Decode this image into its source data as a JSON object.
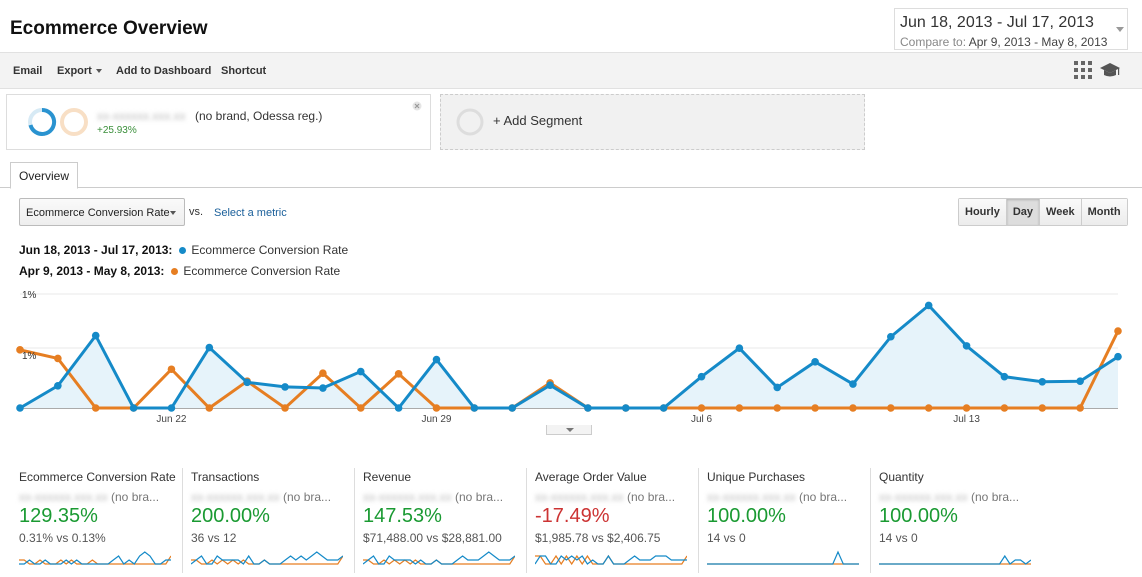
{
  "page": {
    "title": "Ecommerce Overview"
  },
  "date_range": {
    "main": "Jun 18, 2013 - Jul 17, 2013",
    "compare_label": "Compare to:",
    "compare_value": "Apr 9, 2013 - May 8, 2013"
  },
  "toolbar": {
    "email": "Email",
    "export": "Export",
    "add_to_dashboard": "Add to Dashboard",
    "shortcut": "Shortcut"
  },
  "segments": {
    "active": {
      "name_blurred": "xx-xxxxxx.xxx.xx",
      "label": "(no brand, Odessa reg.)",
      "change": "+25.93%"
    },
    "add": "+ Add Segment"
  },
  "tabs": {
    "overview": "Overview"
  },
  "controls": {
    "metric": "Ecommerce Conversion Rate",
    "vs": "vs.",
    "select_metric": "Select a metric",
    "granularity": [
      "Hourly",
      "Day",
      "Week",
      "Month"
    ],
    "active_granularity": "Day"
  },
  "legend": [
    {
      "range": "Jun 18, 2013 - Jul 17, 2013:",
      "metric": "Ecommerce Conversion Rate",
      "color": "#158ac8"
    },
    {
      "range": "Apr 9, 2013 - May 8, 2013:",
      "metric": "Ecommerce Conversion Rate",
      "color": "#e67e22"
    }
  ],
  "chart_data": {
    "type": "line",
    "ytick_labels": [
      "1%",
      "1%"
    ],
    "xtick_labels": [
      "Jun 22",
      "Jun 29",
      "Jul 6",
      "Jul 13"
    ],
    "series": [
      {
        "name": "Jun 18, 2013 - Jul 17, 2013",
        "color": "#158ac8",
        "values": [
          0,
          0.39,
          1.27,
          0,
          0,
          1.06,
          0.45,
          0.37,
          0.35,
          0.64,
          0,
          0.85,
          0,
          0,
          0.4,
          0,
          0,
          0,
          0.55,
          1.05,
          0.36,
          0.81,
          0.42,
          1.25,
          1.8,
          1.09,
          0.55,
          0.46,
          0.47,
          0.9
        ],
        "area": true
      },
      {
        "name": "Apr 9, 2013 - May 8, 2013",
        "color": "#e67e22",
        "values": [
          1.02,
          0.87,
          0,
          0,
          0.68,
          0,
          0.47,
          0,
          0.61,
          0,
          0.6,
          0,
          0,
          0,
          0.44,
          0,
          0,
          0,
          0,
          0,
          0,
          0,
          0,
          0,
          0,
          0,
          0,
          0,
          0,
          1.35
        ],
        "area": false
      }
    ]
  },
  "metric_cards": [
    {
      "name": "Ecommerce Conversion Rate",
      "segment_blur": "xx-xxxxxx.xxx.xx",
      "segment_suffix": "(no bra...",
      "change": "129.35%",
      "change_color": "#1a9a32",
      "comparison": "0.31% vs 0.13%",
      "spark_a": [
        0,
        0,
        1,
        0,
        0,
        1,
        0,
        0,
        0,
        1,
        0,
        1,
        0,
        0,
        0,
        0,
        0,
        0,
        1,
        2,
        0,
        1,
        0,
        2,
        3,
        2,
        0,
        0,
        1,
        1
      ],
      "spark_b": [
        1,
        1,
        0,
        0,
        1,
        0,
        0,
        0,
        1,
        0,
        1,
        0,
        0,
        0,
        1,
        0,
        0,
        0,
        0,
        0,
        0,
        0,
        0,
        0,
        0,
        0,
        0,
        0,
        0,
        2
      ]
    },
    {
      "name": "Transactions",
      "segment_blur": "xx-xxxxxx.xxx.xx",
      "segment_suffix": "(no bra...",
      "change": "200.00%",
      "change_color": "#1a9a32",
      "comparison": "36 vs 12",
      "spark_a": [
        0,
        1,
        2,
        0,
        0,
        2,
        1,
        1,
        1,
        1,
        0,
        2,
        0,
        0,
        1,
        0,
        0,
        0,
        1,
        2,
        1,
        2,
        1,
        2,
        3,
        2,
        1,
        1,
        1,
        2
      ],
      "spark_b": [
        1,
        1,
        0,
        0,
        1,
        0,
        1,
        0,
        1,
        0,
        1,
        0,
        0,
        0,
        1,
        0,
        0,
        0,
        0,
        0,
        0,
        0,
        0,
        0,
        0,
        0,
        0,
        0,
        0,
        2
      ]
    },
    {
      "name": "Revenue",
      "segment_blur": "xx-xxxxxx.xxx.xx",
      "segment_suffix": "(no bra...",
      "change": "147.53%",
      "change_color": "#1a9a32",
      "comparison": "$71,488.00 vs $28,881.00",
      "spark_a": [
        0,
        1,
        2,
        0,
        0,
        2,
        1,
        1,
        1,
        1,
        0,
        1,
        0,
        0,
        1,
        0,
        0,
        0,
        1,
        2,
        1,
        1,
        1,
        2,
        3,
        2,
        1,
        1,
        1,
        2
      ],
      "spark_b": [
        1,
        1,
        0,
        0,
        1,
        0,
        1,
        0,
        1,
        0,
        1,
        0,
        0,
        0,
        1,
        0,
        0,
        0,
        0,
        0,
        0,
        0,
        0,
        0,
        0,
        0,
        0,
        0,
        0,
        2
      ]
    },
    {
      "name": "Average Order Value",
      "segment_blur": "xx-xxxxxx.xxx.xx",
      "segment_suffix": "(no bra...",
      "change": "-17.49%",
      "change_color": "#cc3333",
      "comparison": "$1,985.78 vs $2,406.75",
      "spark_a": [
        0,
        2,
        2,
        0,
        0,
        2,
        1,
        2,
        1,
        2,
        0,
        1,
        0,
        0,
        2,
        0,
        0,
        0,
        1,
        2,
        1,
        1,
        1,
        2,
        2,
        2,
        1,
        1,
        1,
        1
      ],
      "spark_b": [
        2,
        2,
        0,
        0,
        2,
        0,
        2,
        0,
        2,
        0,
        2,
        0,
        0,
        0,
        2,
        0,
        0,
        0,
        0,
        0,
        0,
        0,
        0,
        0,
        0,
        0,
        0,
        0,
        0,
        2
      ]
    },
    {
      "name": "Unique Purchases",
      "segment_blur": "xx-xxxxxx.xxx.xx",
      "segment_suffix": "(no bra...",
      "change": "100.00%",
      "change_color": "#1a9a32",
      "comparison": "14 vs 0",
      "spark_a": [
        0,
        0,
        0,
        0,
        0,
        0,
        0,
        0,
        0,
        0,
        0,
        0,
        0,
        0,
        0,
        0,
        0,
        0,
        0,
        0,
        0,
        0,
        0,
        0,
        0,
        3,
        0,
        0,
        0,
        0
      ],
      "spark_b": [
        0,
        0,
        0,
        0,
        0,
        0,
        0,
        0,
        0,
        0,
        0,
        0,
        0,
        0,
        0,
        0,
        0,
        0,
        0,
        0,
        0,
        0,
        0,
        0,
        0,
        0,
        0,
        0,
        0,
        0
      ]
    },
    {
      "name": "Quantity",
      "segment_blur": "xx-xxxxxx.xxx.xx",
      "segment_suffix": "(no bra...",
      "change": "100.00%",
      "change_color": "#1a9a32",
      "comparison": "14 vs 0",
      "spark_a": [
        0,
        0,
        0,
        0,
        0,
        0,
        0,
        0,
        0,
        0,
        0,
        0,
        0,
        0,
        0,
        0,
        0,
        0,
        0,
        0,
        0,
        0,
        0,
        0,
        2,
        0,
        1,
        1,
        0,
        1
      ],
      "spark_b": [
        0,
        0,
        0,
        0,
        0,
        0,
        0,
        0,
        0,
        0,
        0,
        0,
        0,
        0,
        0,
        0,
        0,
        0,
        0,
        0,
        0,
        0,
        0,
        0,
        0,
        0,
        0,
        0,
        0,
        0
      ]
    }
  ]
}
